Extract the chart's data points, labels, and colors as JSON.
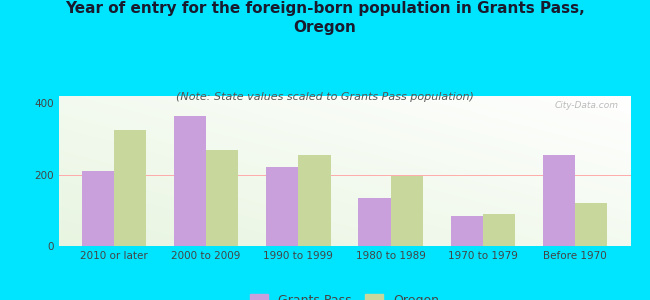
{
  "title": "Year of entry for the foreign-born population in Grants Pass,\nOregon",
  "subtitle": "(Note: State values scaled to Grants Pass population)",
  "categories": [
    "2010 or later",
    "2000 to 2009",
    "1990 to 1999",
    "1980 to 1989",
    "1970 to 1979",
    "Before 1970"
  ],
  "grants_pass_values": [
    210,
    365,
    220,
    135,
    85,
    255
  ],
  "oregon_values": [
    325,
    270,
    255,
    195,
    90,
    120
  ],
  "grants_pass_color": "#c9a0dc",
  "oregon_color": "#c8d89c",
  "background_color": "#00e5ff",
  "ylim": [
    0,
    420
  ],
  "yticks": [
    0,
    200,
    400
  ],
  "bar_width": 0.35,
  "legend_labels": [
    "Grants Pass",
    "Oregon"
  ],
  "title_fontsize": 11,
  "subtitle_fontsize": 8,
  "tick_fontsize": 7.5,
  "legend_fontsize": 9
}
